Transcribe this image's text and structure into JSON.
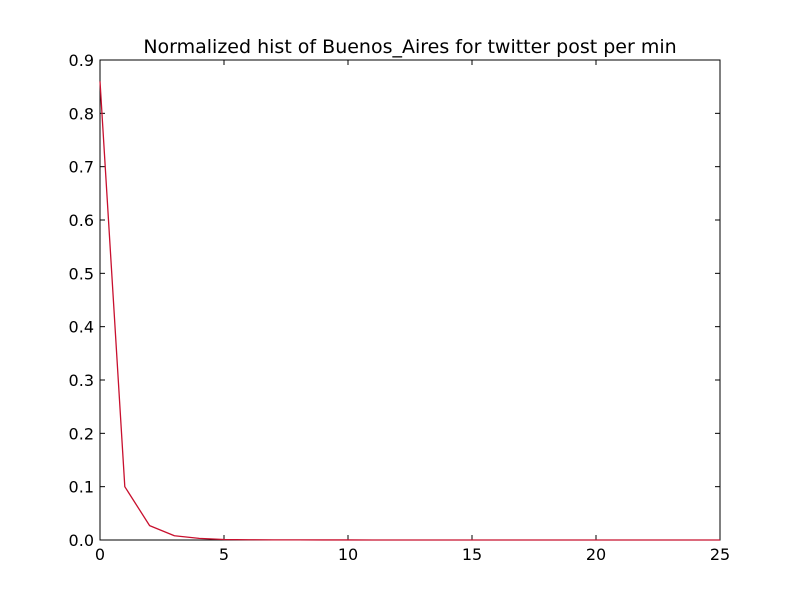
{
  "chart_data": {
    "type": "line",
    "title": "Normalized hist of Buenos_Aires for twitter post per min",
    "xlabel": "",
    "ylabel": "",
    "xlim": [
      0,
      25
    ],
    "ylim": [
      0,
      0.9
    ],
    "xticks": [
      0,
      5,
      10,
      15,
      20,
      25
    ],
    "yticks": [
      0.0,
      0.1,
      0.2,
      0.3,
      0.4,
      0.5,
      0.6,
      0.7,
      0.8,
      0.9
    ],
    "xtick_labels": [
      "0",
      "5",
      "10",
      "15",
      "20",
      "25"
    ],
    "ytick_labels": [
      "0.0",
      "0.1",
      "0.2",
      "0.3",
      "0.4",
      "0.5",
      "0.6",
      "0.7",
      "0.8",
      "0.9"
    ],
    "grid": false,
    "legend": "none",
    "series": [
      {
        "color": "#c8102e",
        "x": [
          0,
          1,
          2,
          3,
          4,
          5,
          6,
          7,
          8,
          9,
          10,
          11,
          12,
          13,
          14,
          15,
          16,
          17,
          18,
          19,
          20,
          21,
          22,
          23,
          24,
          25
        ],
        "y": [
          0.86,
          0.1,
          0.027,
          0.008,
          0.003,
          0.001,
          0.0005,
          0.0003,
          0.0002,
          0.0001,
          0.0001,
          0.0,
          0.0,
          0.0,
          0.0,
          0.0,
          0.0,
          0.0,
          0.0,
          0.0,
          0.0,
          0.0,
          0.0,
          0.0,
          0.0,
          0.0
        ]
      }
    ]
  }
}
